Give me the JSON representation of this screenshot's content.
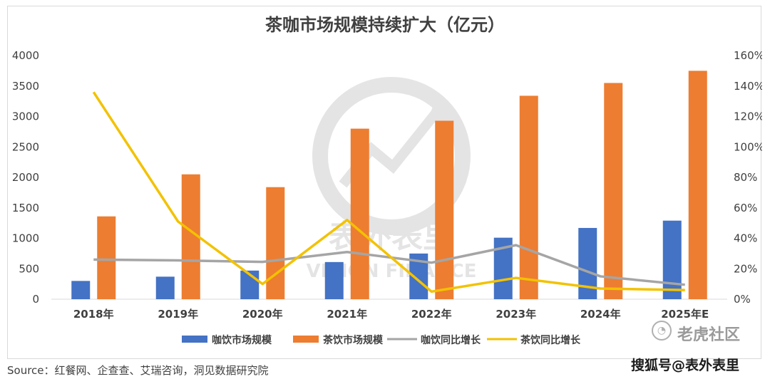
{
  "chart_data": {
    "type": "bar",
    "title": "茶咖市场规模持续扩大（亿元）",
    "categories": [
      "2018年",
      "2019年",
      "2020年",
      "2021年",
      "2022年",
      "2023年",
      "2024年",
      "2025年E"
    ],
    "series": [
      {
        "name": "咖饮市场规模",
        "type": "bar",
        "axis": "left",
        "color": "#4472C4",
        "values": [
          300,
          370,
          470,
          610,
          750,
          1010,
          1170,
          1290
        ]
      },
      {
        "name": "茶饮市场规模",
        "type": "bar",
        "axis": "left",
        "color": "#ED7D31",
        "values": [
          1360,
          2050,
          1840,
          2800,
          2930,
          3340,
          3550,
          3750
        ]
      },
      {
        "name": "咖饮同比增长",
        "type": "line",
        "axis": "right",
        "color": "#A5A5A5",
        "values": [
          26,
          25.5,
          24.5,
          31,
          24,
          35.5,
          15,
          9.5
        ]
      },
      {
        "name": "茶饮同比增长",
        "type": "line",
        "axis": "right",
        "color": "#F2C200",
        "values": [
          136,
          51,
          10,
          52,
          5,
          14,
          7,
          6
        ]
      }
    ],
    "y_left": {
      "min": 0,
      "max": 4000,
      "ticks": [
        "0",
        "500",
        "1000",
        "1500",
        "2000",
        "2500",
        "3000",
        "3500",
        "4000"
      ]
    },
    "y_right": {
      "min": 0,
      "max": 160,
      "ticks": [
        "0%",
        "20%",
        "40%",
        "60%",
        "80%",
        "100%",
        "120%",
        "140%",
        "160%"
      ]
    },
    "grid": false,
    "legend_position": "bottom"
  },
  "source_text": "Source：红餐网、企查查、艾瑞咨询，洞见数据研究院",
  "watermarks": {
    "laohu": "老虎社区",
    "sohu": "搜狐号@表外表里",
    "center_logo_text": "表外表里",
    "center_logo_sub": "VISION FINANCE"
  }
}
